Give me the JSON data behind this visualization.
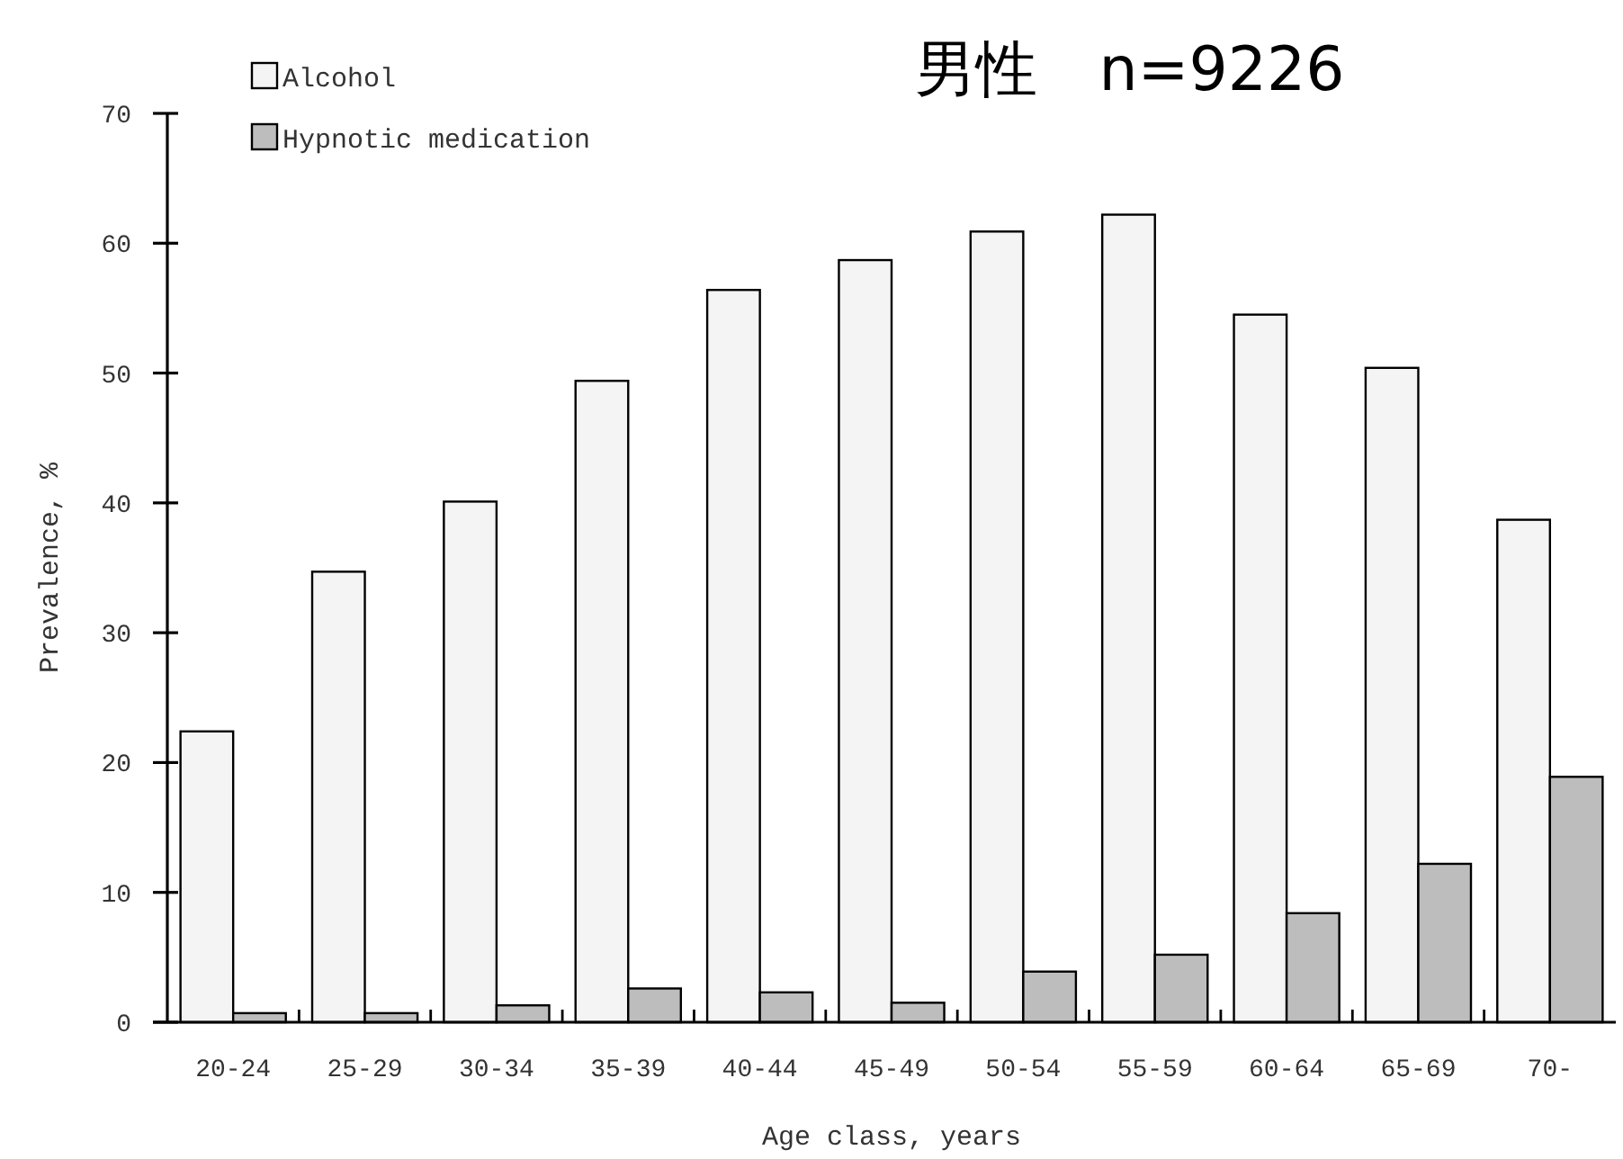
{
  "chart_data": {
    "type": "bar",
    "title": "男性　n=9226",
    "xlabel": "Age class, years",
    "ylabel": "Prevalence, %",
    "categories": [
      "20-24",
      "25-29",
      "30-34",
      "35-39",
      "40-44",
      "45-49",
      "50-54",
      "55-59",
      "60-64",
      "65-69",
      "70-"
    ],
    "series": [
      {
        "name": "Alcohol",
        "color": "#f4f4f4",
        "values": [
          22.4,
          34.7,
          40.1,
          49.4,
          56.4,
          58.7,
          60.9,
          62.2,
          54.5,
          50.4,
          38.7
        ]
      },
      {
        "name": "Hypnotic medication",
        "color": "#bdbdbd",
        "values": [
          0.7,
          0.7,
          1.3,
          2.6,
          2.3,
          1.5,
          3.9,
          5.2,
          8.4,
          12.2,
          18.9
        ]
      }
    ],
    "ylim": [
      0,
      70
    ],
    "yticks": [
      0,
      10,
      20,
      30,
      40,
      50,
      60,
      70
    ],
    "grid": false,
    "legend": "top left"
  }
}
